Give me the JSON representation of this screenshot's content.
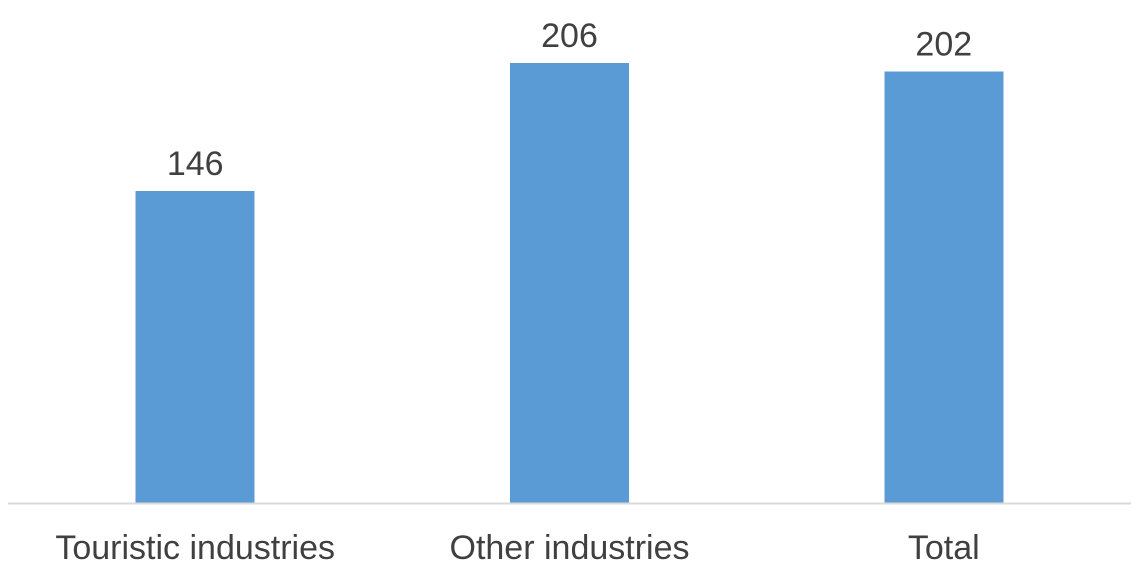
{
  "chart_data": {
    "type": "bar",
    "categories": [
      "Touristic industries",
      "Other industries",
      "Total"
    ],
    "values": [
      146,
      206,
      202
    ],
    "data_labels": [
      "146",
      "206",
      "202"
    ],
    "title": "",
    "xlabel": "",
    "ylabel": "",
    "ylim": [
      0,
      206
    ],
    "grid": false,
    "legend": "none",
    "colors": {
      "bar": "#5b9bd5",
      "axis": "#d9d9d9",
      "text": "#404040"
    }
  }
}
